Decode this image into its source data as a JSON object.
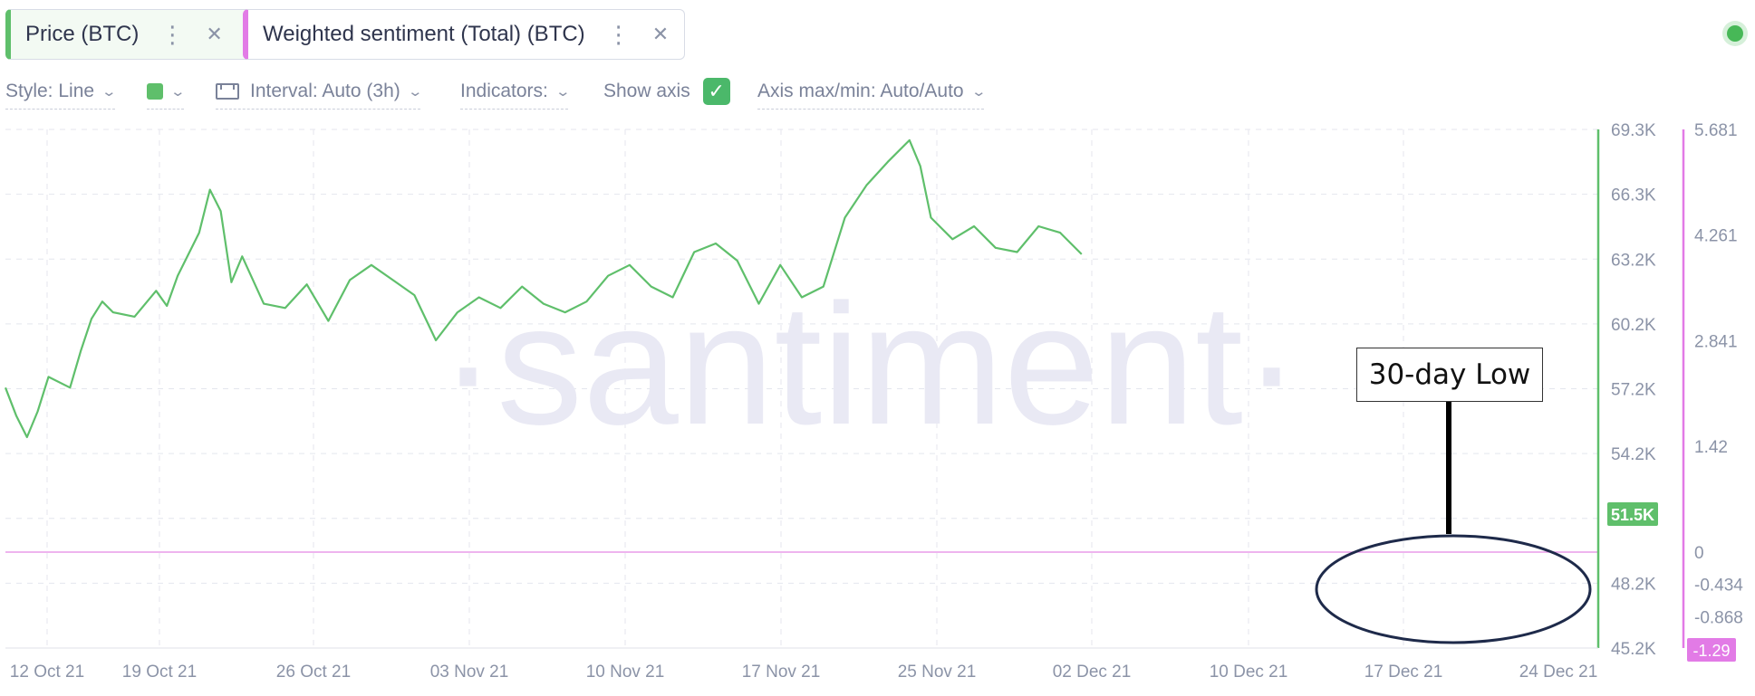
{
  "tabs": [
    {
      "label": "Price (BTC)",
      "color": "#5fbf6b",
      "menu_icon": "more-vertical-icon",
      "close_icon": "close-icon"
    },
    {
      "label": "Weighted sentiment (Total) (BTC)",
      "color": "#e27be6",
      "menu_icon": "more-vertical-icon",
      "close_icon": "close-icon"
    }
  ],
  "status": {
    "live_indicator_color": "#47b857"
  },
  "settings": {
    "style": "Style: Line",
    "color_swatch": "#5fbf6b",
    "interval": "Interval: Auto (3h)",
    "indicators": "Indicators:",
    "show_axis": "Show axis",
    "show_axis_checked": true,
    "axis_maxmin": "Axis max/min: Auto/Auto"
  },
  "annotation": {
    "label": "30-day Low"
  },
  "watermark": "·santiment·",
  "chart_data": {
    "type": "line",
    "x_ticks": [
      "12 Oct 21",
      "19 Oct 21",
      "26 Oct 21",
      "03 Nov 21",
      "10 Nov 21",
      "17 Nov 21",
      "25 Nov 21",
      "02 Dec 21",
      "10 Dec 21",
      "17 Dec 21",
      "24 Dec 21"
    ],
    "xlim": [
      "2021-10-11",
      "2021-12-24"
    ],
    "grid": true,
    "axes": {
      "price": {
        "ticks": [
          "69.3K",
          "66.3K",
          "63.2K",
          "60.2K",
          "57.2K",
          "54.2K",
          "51.2K",
          "48.2K",
          "45.2K"
        ],
        "ylim": [
          45.2,
          69.3
        ],
        "unit": "K",
        "current": "51.5K",
        "color": "#5fbf6b"
      },
      "sentiment": {
        "ticks": [
          "5.681",
          "4.261",
          "2.841",
          "1.42",
          "0",
          "-0.434",
          "-0.868"
        ],
        "ylim": [
          -1.29,
          5.681
        ],
        "current": "-1.29",
        "color": "#e27be6"
      }
    },
    "series": [
      {
        "name": "Price (BTC)",
        "axis": "price",
        "color": "#5fbf6b",
        "points": [
          [
            "2021-10-11",
            57.3
          ],
          [
            "2021-10-11T12",
            56.0
          ],
          [
            "2021-10-12",
            55.0
          ],
          [
            "2021-10-12T12",
            56.2
          ],
          [
            "2021-10-13",
            57.8
          ],
          [
            "2021-10-14",
            57.3
          ],
          [
            "2021-10-14T12",
            59.0
          ],
          [
            "2021-10-15",
            60.5
          ],
          [
            "2021-10-15T12",
            61.3
          ],
          [
            "2021-10-16",
            60.8
          ],
          [
            "2021-10-17",
            60.6
          ],
          [
            "2021-10-18",
            61.8
          ],
          [
            "2021-10-18T12",
            61.1
          ],
          [
            "2021-10-19",
            62.5
          ],
          [
            "2021-10-20",
            64.5
          ],
          [
            "2021-10-20T12",
            66.5
          ],
          [
            "2021-10-21",
            65.5
          ],
          [
            "2021-10-21T12",
            62.2
          ],
          [
            "2021-10-22",
            63.4
          ],
          [
            "2021-10-23",
            61.2
          ],
          [
            "2021-10-24",
            61.0
          ],
          [
            "2021-10-25",
            62.1
          ],
          [
            "2021-10-26",
            60.4
          ],
          [
            "2021-10-27",
            62.3
          ],
          [
            "2021-10-28",
            63.0
          ],
          [
            "2021-10-29",
            62.3
          ],
          [
            "2021-10-30",
            61.6
          ],
          [
            "2021-10-31",
            59.5
          ],
          [
            "2021-11-01",
            60.8
          ],
          [
            "2021-11-02",
            61.5
          ],
          [
            "2021-11-03",
            61.0
          ],
          [
            "2021-11-04",
            62.0
          ],
          [
            "2021-11-05",
            61.2
          ],
          [
            "2021-11-06",
            60.8
          ],
          [
            "2021-11-07",
            61.3
          ],
          [
            "2021-11-08",
            62.5
          ],
          [
            "2021-11-09",
            63.0
          ],
          [
            "2021-11-10",
            62.0
          ],
          [
            "2021-11-11",
            61.5
          ],
          [
            "2021-11-12",
            63.6
          ],
          [
            "2021-11-13",
            64.0
          ],
          [
            "2021-11-14",
            63.2
          ],
          [
            "2021-11-15",
            61.2
          ],
          [
            "2021-11-16",
            63.0
          ],
          [
            "2021-11-17",
            61.5
          ],
          [
            "2021-11-18",
            62.0
          ],
          [
            "2021-11-19",
            65.2
          ],
          [
            "2021-11-20",
            66.7
          ],
          [
            "2021-11-21",
            67.8
          ],
          [
            "2021-11-22",
            68.8
          ],
          [
            "2021-11-22T12",
            67.6
          ],
          [
            "2021-11-23",
            65.2
          ],
          [
            "2021-11-24",
            64.2
          ],
          [
            "2021-11-25",
            64.8
          ],
          [
            "2021-11-26",
            63.8
          ],
          [
            "2021-11-27",
            63.6
          ],
          [
            "2021-11-28",
            64.8
          ],
          [
            "2021-11-29",
            64.5
          ],
          [
            "2021-11-30",
            63.5
          ]
        ]
      },
      {
        "name": "Weighted sentiment (Total) (BTC)",
        "axis": "sentiment",
        "color": "#e27be6",
        "points": []
      }
    ]
  }
}
